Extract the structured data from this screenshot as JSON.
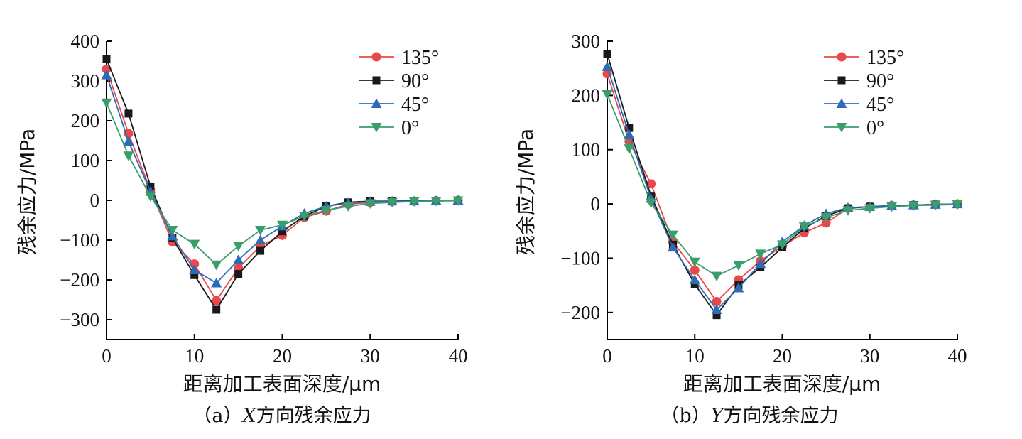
{
  "chart_data": [
    {
      "type": "line",
      "caption_prefix": "（a）",
      "caption_var": "X",
      "caption_rest": "方向残余应力",
      "xlabel": "距离加工表面深度/μm",
      "ylabel": "残余应力/MPa",
      "xlim": [
        0,
        40
      ],
      "ylim": [
        -350,
        400
      ],
      "xticks": [
        0,
        10,
        20,
        30,
        40
      ],
      "yticks": [
        400,
        300,
        200,
        100,
        0,
        -100,
        -200,
        -300
      ],
      "ytick_labels": [
        "400",
        "300",
        "200",
        "100",
        "0",
        "−100",
        "−200",
        "−300"
      ],
      "legend_position": "top-right",
      "x": [
        0,
        2.5,
        5,
        7.5,
        10,
        12.5,
        15,
        17.5,
        20,
        22.5,
        25,
        27.5,
        30,
        32.5,
        35,
        37.5,
        40
      ],
      "series": [
        {
          "name": "135°",
          "color": "#e8474b",
          "marker": "circle",
          "values": [
            330,
            168,
            25,
            -105,
            -160,
            -252,
            -170,
            -115,
            -88,
            -43,
            -27,
            -10,
            -5,
            -3,
            -2,
            -1,
            0
          ]
        },
        {
          "name": "90°",
          "color": "#1a1a1a",
          "marker": "square",
          "values": [
            355,
            218,
            35,
            -95,
            -188,
            -275,
            -185,
            -127,
            -78,
            -40,
            -15,
            -5,
            -2,
            -2,
            -1,
            -1,
            0
          ]
        },
        {
          "name": "45°",
          "color": "#2e6bb5",
          "marker": "triangle-up",
          "values": [
            315,
            148,
            22,
            -90,
            -175,
            -208,
            -150,
            -100,
            -65,
            -33,
            -15,
            -7,
            -3,
            -2,
            -2,
            -1,
            0
          ]
        },
        {
          "name": "0°",
          "color": "#3a9e6a",
          "marker": "triangle-down",
          "values": [
            245,
            112,
            10,
            -75,
            -110,
            -162,
            -115,
            -75,
            -62,
            -40,
            -25,
            -15,
            -8,
            -5,
            -3,
            -2,
            -1
          ]
        }
      ]
    },
    {
      "type": "line",
      "caption_prefix": "（b）",
      "caption_var": "Y",
      "caption_rest": "方向残余应力",
      "xlabel": "距离加工表面深度/μm",
      "ylabel": "残余应力/MPa",
      "xlim": [
        0,
        40
      ],
      "ylim": [
        -250,
        300
      ],
      "xticks": [
        0,
        10,
        20,
        30,
        40
      ],
      "yticks": [
        300,
        200,
        100,
        0,
        -100,
        -200
      ],
      "ytick_labels": [
        "300",
        "200",
        "100",
        "0",
        "−100",
        "−200"
      ],
      "legend_position": "top-right",
      "x": [
        0,
        2.5,
        5,
        7.5,
        10,
        12.5,
        15,
        17.5,
        20,
        22.5,
        25,
        27.5,
        30,
        32.5,
        35,
        37.5,
        40
      ],
      "series": [
        {
          "name": "135°",
          "color": "#e8474b",
          "marker": "circle",
          "values": [
            240,
            115,
            37,
            -70,
            -122,
            -180,
            -140,
            -105,
            -78,
            -53,
            -35,
            -8,
            -5,
            -3,
            -2,
            -1,
            0
          ]
        },
        {
          "name": "90°",
          "color": "#1a1a1a",
          "marker": "square",
          "values": [
            277,
            140,
            15,
            -75,
            -148,
            -205,
            -150,
            -117,
            -80,
            -45,
            -22,
            -8,
            -5,
            -4,
            -2,
            -1,
            0
          ]
        },
        {
          "name": "45°",
          "color": "#2e6bb5",
          "marker": "triangle-up",
          "values": [
            253,
            128,
            10,
            -80,
            -140,
            -195,
            -155,
            -110,
            -70,
            -40,
            -18,
            -7,
            -5,
            -3,
            -2,
            -1,
            0
          ]
        },
        {
          "name": "0°",
          "color": "#3a9e6a",
          "marker": "triangle-down",
          "values": [
            202,
            102,
            2,
            -57,
            -107,
            -133,
            -113,
            -92,
            -75,
            -42,
            -25,
            -12,
            -8,
            -5,
            -3,
            -2,
            -1
          ]
        }
      ]
    }
  ]
}
